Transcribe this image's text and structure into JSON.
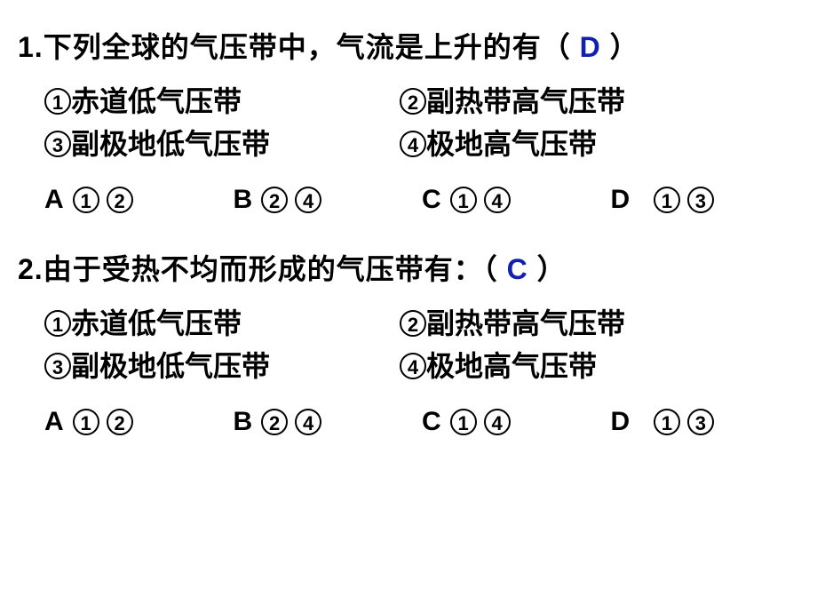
{
  "q1": {
    "stem_pre": "1.下列全球的气压带中，气流是上升的有（",
    "answer": "D",
    "stem_post": "）",
    "opts": {
      "o1": "赤道低气压带",
      "o2": "副热带高气压带",
      "o3": "副极地低气压带",
      "o4": "极地高气压带"
    },
    "choices": {
      "A": [
        "1",
        "2"
      ],
      "B": [
        "2",
        "4"
      ],
      "C": [
        "1",
        "4"
      ],
      "D": [
        "1",
        "3"
      ]
    }
  },
  "q2": {
    "stem_pre": "2.由于受热不均而形成的气压带有：（",
    "answer": "C",
    "stem_post": "）",
    "opts": {
      "o1": "赤道低气压带",
      "o2": "副热带高气压带",
      "o3": "副极地低气压带",
      "o4": "极地高气压带"
    },
    "choices": {
      "A": [
        "1",
        "2"
      ],
      "B": [
        "2",
        "4"
      ],
      "C": [
        "1",
        "4"
      ],
      "D": [
        "1",
        "3"
      ]
    }
  },
  "nums": {
    "n1": "1",
    "n2": "2",
    "n3": "3",
    "n4": "4"
  },
  "letters": {
    "A": "A",
    "B": "B",
    "C": "C",
    "D": "D"
  },
  "answer_color": "#1020b0"
}
